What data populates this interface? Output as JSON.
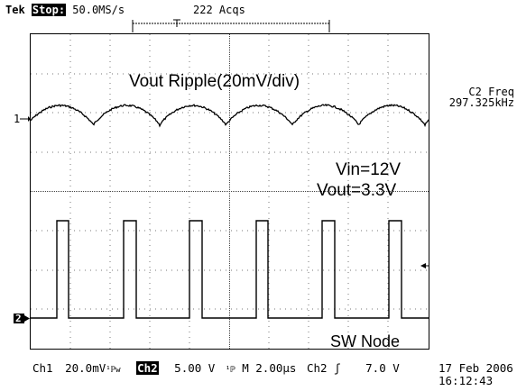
{
  "header": {
    "brand": "Tek",
    "run_state": "Stop:",
    "sample_rate": "50.0MS/s",
    "acquisitions": "222 Acqs"
  },
  "screen": {
    "ripple_label": "Vout Ripple(20mV/div)",
    "vin_label": "Vin=12V",
    "vout_label": "Vout=3.3V",
    "sw_label": "SW Node",
    "ch1_marker": "1",
    "ch2_marker": "2"
  },
  "measurement": {
    "name": "C2 Freq",
    "value": "297.325kHz"
  },
  "footer": {
    "ch1": "Ch1",
    "ch1_scale": "20.0mV",
    "ch1_coupling": "¹ℙw",
    "ch2": "Ch2",
    "ch2_scale": "5.00 V",
    "bw_symbol": "¹ℙ",
    "timebase": "M 2.00μs",
    "trigger_source": "Ch2",
    "trigger_slope": "ʃ",
    "trigger_level": "7.0 V",
    "date": "17 Feb 2006",
    "time": "16:12:43"
  },
  "colors": {
    "background": "#ffffff",
    "trace": "#000000"
  }
}
